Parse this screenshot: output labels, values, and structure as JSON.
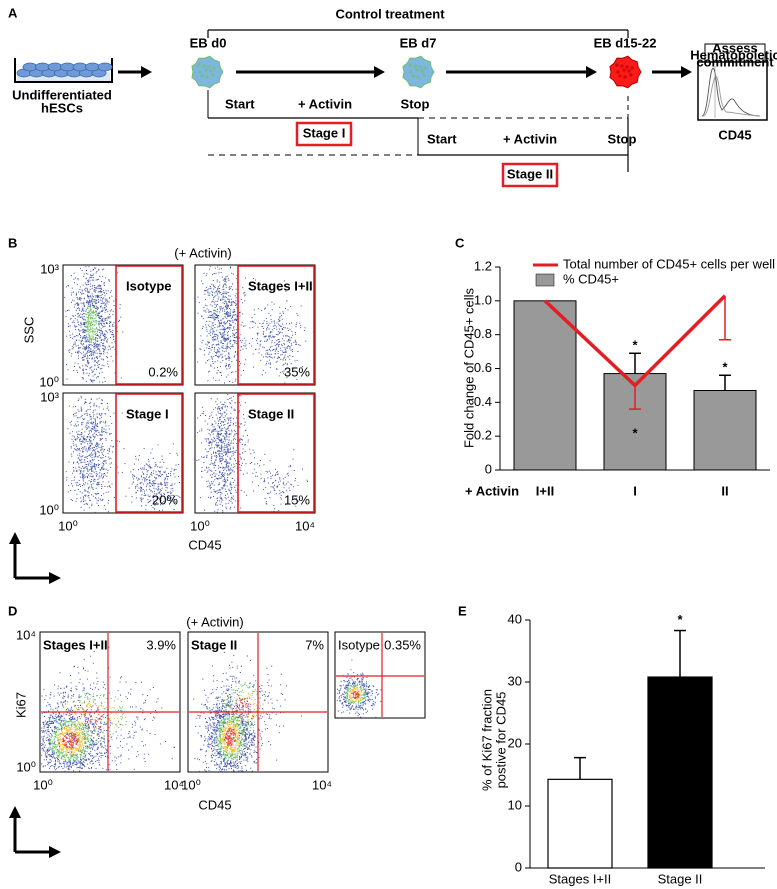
{
  "panel_a": {
    "label": "A",
    "title": "Control treatment",
    "stages": [
      "EB d0",
      "EB d7",
      "EB d15-22"
    ],
    "source": [
      "Undifferentiated",
      "hESCs"
    ],
    "assay": {
      "title": [
        "Assess",
        "Hematopoietic",
        "commitment"
      ],
      "marker": "CD45"
    },
    "protocols": [
      {
        "start": "Start",
        "treatment": "+ Activin",
        "stop": "Stop",
        "name": "Stage I"
      },
      {
        "start": "Start",
        "treatment": "+ Activin",
        "stop": "Stop",
        "name": "Stage II"
      }
    ]
  },
  "panel_b": {
    "label": "B",
    "condition": "(+ Activin)",
    "y_axis": "SSC",
    "x_axis": "CD45",
    "y_ticks": [
      "10³",
      "10⁰"
    ],
    "x_ticks": [
      "10⁰",
      "10⁴"
    ],
    "plots": [
      {
        "name": "Isotype",
        "gate": "0.2%"
      },
      {
        "name": "Stages I+II",
        "gate": "35%"
      },
      {
        "name": "Stage I",
        "gate": "20%"
      },
      {
        "name": "Stage II",
        "gate": "15%"
      }
    ]
  },
  "panel_c": {
    "label": "C"
  },
  "panel_d": {
    "label": "D",
    "condition": "(+ Activin)",
    "y_axis": "Ki67",
    "x_axis": "CD45",
    "y_ticks": [
      "10⁴",
      "10⁰"
    ],
    "x_ticks": [
      "10⁰",
      "10⁴"
    ],
    "plots": [
      {
        "name": "Stages I+II",
        "quadrant": "3.9%"
      },
      {
        "name": "Stage II",
        "quadrant": "7%"
      },
      {
        "name": "Isotype",
        "quadrant": "0.35%"
      }
    ]
  },
  "panel_e": {
    "label": "E"
  },
  "chart_data": [
    {
      "type": "bar",
      "x_label": "+ Activin",
      "y_label": "Fold change of CD45+ cells",
      "categories": [
        "I+II",
        "I",
        "II"
      ],
      "ylim": [
        0,
        1.2
      ],
      "yticks": [
        0,
        0.2,
        0.4,
        0.6,
        0.8,
        {
          "value": 1,
          "label": "1.0"
        },
        1.2
      ],
      "series": [
        {
          "name": "% CD45+",
          "type": "bar",
          "color": "#999999",
          "values": [
            1,
            0.57,
            0.47
          ],
          "errors": [
            null,
            0.12,
            0.09
          ]
        },
        {
          "name": "Total number of CD45+ cells per well",
          "type": "line",
          "color": "#e31e24",
          "values": [
            1,
            0.5,
            1.03
          ],
          "errors": [
            null,
            0.14,
            0.26
          ]
        }
      ],
      "annotations": [
        {
          "text": "*",
          "color": "#000000"
        },
        {
          "text": "*",
          "color": "#000000"
        },
        {
          "text": "*",
          "color": "#e31e24"
        }
      ]
    },
    {
      "type": "bar",
      "y_label": [
        "% of Ki67 fraction",
        "postive for CD45"
      ],
      "categories": [
        "Stages I+II",
        "Stage II"
      ],
      "values": [
        14.3,
        30.8
      ],
      "errors": [
        3.5,
        7.5
      ],
      "colors": [
        "#ffffff",
        "#000000"
      ],
      "ylim": [
        0,
        40
      ],
      "yticks": [
        0,
        10,
        20,
        30,
        40
      ],
      "annotations": [
        "*"
      ]
    }
  ]
}
